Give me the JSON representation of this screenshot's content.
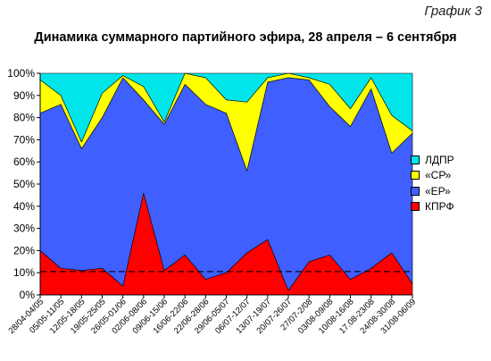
{
  "header": {
    "corner_tag": "График 3",
    "title": "Динамика суммарного партийного эфира, 28 апреля – 6 сентября"
  },
  "chart_data": {
    "type": "area",
    "stacked": true,
    "title": "Динамика суммарного партийного эфира, 28 апреля – 6 сентября",
    "xlabel": "",
    "ylabel": "",
    "ylim": [
      0,
      100
    ],
    "yticks": [
      "0%",
      "10%",
      "20%",
      "30%",
      "40%",
      "50%",
      "60%",
      "70%",
      "80%",
      "90%",
      "100%"
    ],
    "grid": false,
    "legend_position": "right",
    "categories": [
      "28/04-04/05",
      "05/05-11/05",
      "12/05-18/05",
      "19/05-25/05",
      "26/05-01/06",
      "02/06-08/06",
      "09/06-15/06",
      "16/06-22/06",
      "22/06-28/06",
      "29/06-05/07",
      "06/07-12/07",
      "13/07-19/07",
      "20/07-26/07",
      "27/07-2/08",
      "03/08-09/08",
      "10/08-16/08",
      "17.08-23/08",
      "24/08-30/08",
      "31/08-06/09"
    ],
    "series": [
      {
        "name": "КПРФ",
        "color": "#ff0000",
        "values": [
          20,
          12,
          11,
          12,
          4,
          46,
          11,
          18,
          7,
          10,
          19,
          25,
          2,
          15,
          18,
          7,
          12,
          19,
          5
        ]
      },
      {
        "name": "«ЕР»",
        "color": "#3f5fff",
        "values": [
          62,
          74,
          55,
          68,
          94,
          42,
          66,
          77,
          79,
          72,
          37,
          71,
          96,
          82,
          67,
          69,
          81,
          45,
          68
        ]
      },
      {
        "name": "«СР»",
        "color": "#ffff00",
        "values": [
          15,
          4,
          3,
          11,
          1,
          6,
          1,
          5,
          12,
          6,
          31,
          2,
          2,
          1,
          10,
          8,
          5,
          17,
          1
        ]
      },
      {
        "name": "ЛДПР",
        "color": "#00e5ea",
        "values": [
          3,
          10,
          31,
          9,
          1,
          6,
          22,
          0,
          2,
          12,
          13,
          2,
          0,
          2,
          5,
          16,
          2,
          19,
          26
        ]
      }
    ],
    "reference_line": {
      "value": 10.5,
      "style": "dashed",
      "color": "#000000"
    }
  }
}
